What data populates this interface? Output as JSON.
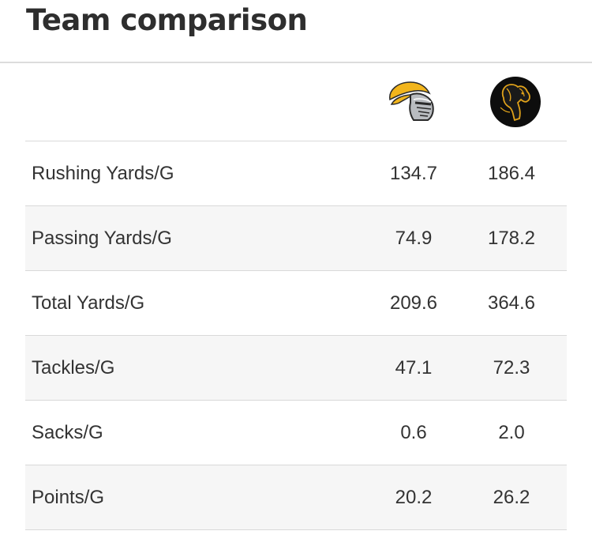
{
  "title": "Team comparison",
  "teams": [
    {
      "logo": "knight-helmet-logo-icon",
      "accent": "#f2b51c"
    },
    {
      "logo": "mustang-horse-logo-icon",
      "accent": "#e0a21a"
    }
  ],
  "rows": [
    {
      "label": "Rushing Yards/G",
      "team_a": "134.7",
      "team_b": "186.4"
    },
    {
      "label": "Passing Yards/G",
      "team_a": "74.9",
      "team_b": "178.2"
    },
    {
      "label": "Total Yards/G",
      "team_a": "209.6",
      "team_b": "364.6"
    },
    {
      "label": "Tackles/G",
      "team_a": "47.1",
      "team_b": "72.3"
    },
    {
      "label": "Sacks/G",
      "team_a": "0.6",
      "team_b": "2.0"
    },
    {
      "label": "Points/G",
      "team_a": "20.2",
      "team_b": "26.2"
    }
  ]
}
